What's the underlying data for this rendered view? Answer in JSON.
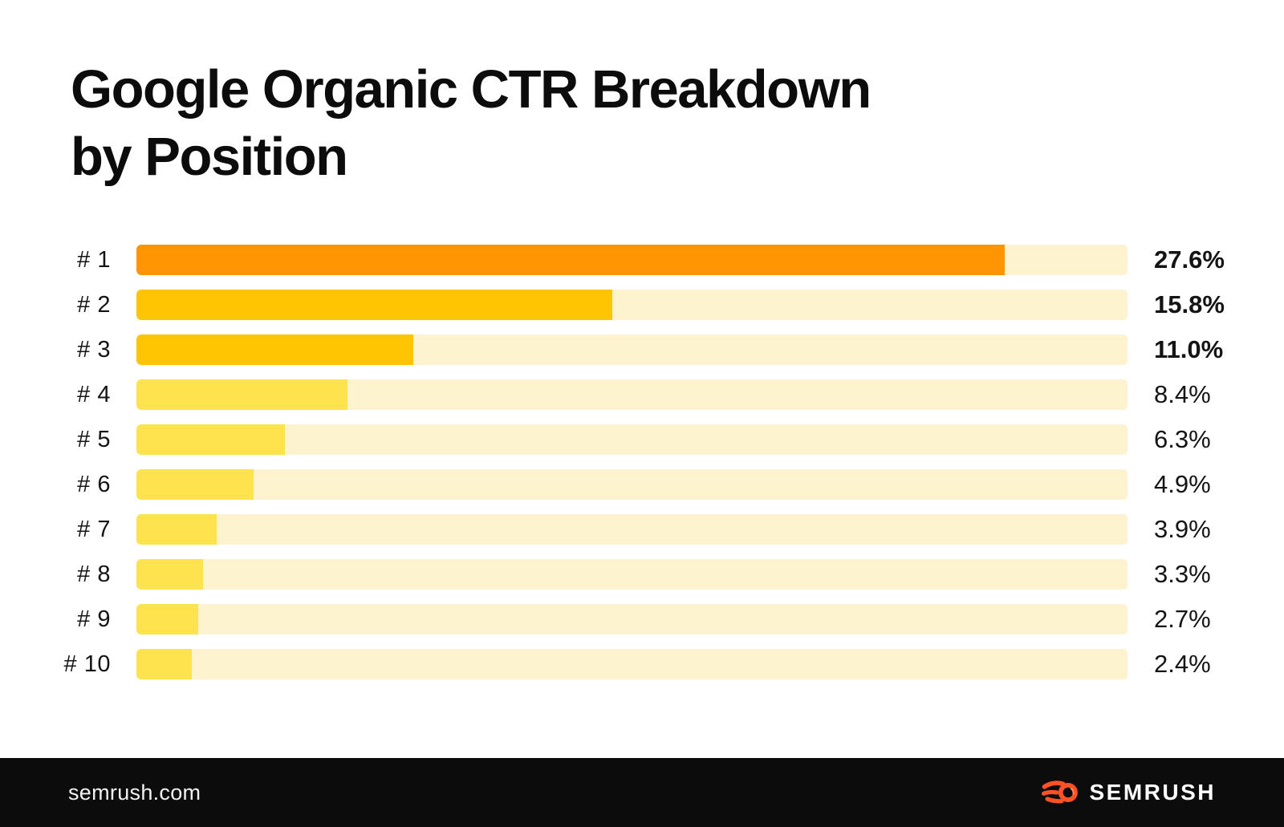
{
  "chart": {
    "title_lines": [
      "Google Organic CTR Breakdown",
      "by Position"
    ],
    "rows": [
      {
        "label": "# 1",
        "value": 27.6,
        "value_label": "27.6%",
        "fill_color": "#FF9502",
        "width_pct": 87.6
      },
      {
        "label": "# 2",
        "value": 15.8,
        "value_label": "15.8%",
        "fill_color": "#FFC402",
        "width_pct": 48.0
      },
      {
        "label": "# 3",
        "value": 11.0,
        "value_label": "11.0%",
        "fill_color": "#FFC402",
        "width_pct": 27.9
      },
      {
        "label": "# 4",
        "value": 8.4,
        "value_label": "8.4%",
        "fill_color": "#FFE34E",
        "width_pct": 21.3
      },
      {
        "label": "# 5",
        "value": 6.3,
        "value_label": "6.3%",
        "fill_color": "#FFE34E",
        "width_pct": 15.0
      },
      {
        "label": "# 6",
        "value": 4.9,
        "value_label": "4.9%",
        "fill_color": "#FFE34E",
        "width_pct": 11.8
      },
      {
        "label": "# 7",
        "value": 3.9,
        "value_label": "3.9%",
        "fill_color": "#FFE34E",
        "width_pct": 8.1
      },
      {
        "label": "# 8",
        "value": 3.3,
        "value_label": "3.3%",
        "fill_color": "#FFE34E",
        "width_pct": 6.7
      },
      {
        "label": "# 9",
        "value": 2.7,
        "value_label": "2.7%",
        "fill_color": "#FFE34E",
        "width_pct": 6.2
      },
      {
        "label": "# 10",
        "value": 2.4,
        "value_label": "2.4%",
        "fill_color": "#FFE34E",
        "width_pct": 5.6
      }
    ]
  },
  "chart_data": {
    "type": "bar",
    "orientation": "horizontal",
    "title": "Google Organic CTR Breakdown by Position",
    "categories": [
      "# 1",
      "# 2",
      "# 3",
      "# 4",
      "# 5",
      "# 6",
      "# 7",
      "# 8",
      "# 9",
      "# 10"
    ],
    "values": [
      27.6,
      15.8,
      11.0,
      8.4,
      6.3,
      4.9,
      3.9,
      3.3,
      2.7,
      2.4
    ],
    "unit": "%",
    "value_labels": [
      "27.6%",
      "15.8%",
      "11.0%",
      "8.4%",
      "6.3%",
      "4.9%",
      "3.9%",
      "3.3%",
      "2.7%",
      "2.4%"
    ],
    "grid": false,
    "legend": false,
    "bar_colors": {
      "position_1": "#FF9502",
      "positions_2_3": "#FFC402",
      "positions_4_10": "#FFE34E",
      "track_background": "#FDF3CF"
    }
  },
  "colors": {
    "track_color": "#FDF3CF",
    "footer_background": "#0C0C0C",
    "brand_orange": "#FF5127"
  },
  "footer": {
    "site": "semrush.com",
    "brand": "SEMRUSH"
  }
}
